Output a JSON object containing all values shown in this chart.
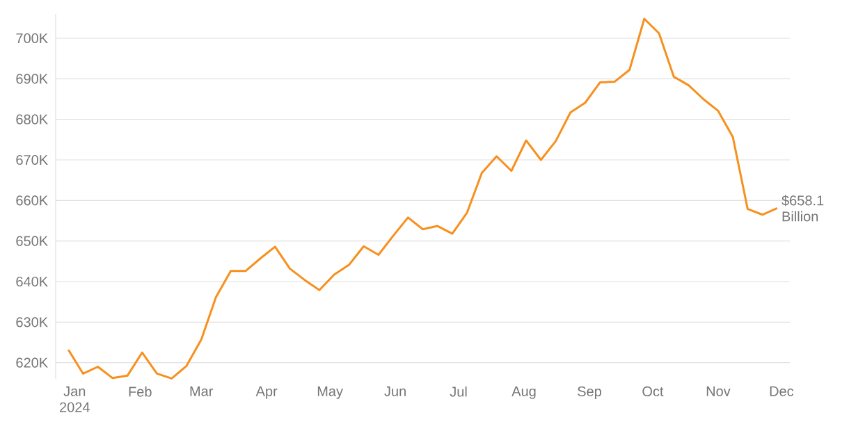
{
  "chart_data": {
    "type": "line",
    "x": [
      "2023-12-29",
      "2024-01-05",
      "2024-01-12",
      "2024-01-19",
      "2024-01-26",
      "2024-02-02",
      "2024-02-09",
      "2024-02-16",
      "2024-02-23",
      "2024-03-01",
      "2024-03-08",
      "2024-03-15",
      "2024-03-22",
      "2024-03-29",
      "2024-04-05",
      "2024-04-12",
      "2024-04-19",
      "2024-04-26",
      "2024-05-03",
      "2024-05-10",
      "2024-05-17",
      "2024-05-24",
      "2024-05-31",
      "2024-06-07",
      "2024-06-14",
      "2024-06-21",
      "2024-06-28",
      "2024-07-05",
      "2024-07-12",
      "2024-07-19",
      "2024-07-26",
      "2024-08-02",
      "2024-08-09",
      "2024-08-16",
      "2024-08-23",
      "2024-08-30",
      "2024-09-06",
      "2024-09-13",
      "2024-09-20",
      "2024-09-27",
      "2024-10-04",
      "2024-10-11",
      "2024-10-18",
      "2024-10-25",
      "2024-11-01",
      "2024-11-08",
      "2024-11-15",
      "2024-11-22",
      "2024-11-29"
    ],
    "series": [
      {
        "color": "#f7901e",
        "values": [
          623.2,
          617.3,
          619.0,
          616.2,
          616.8,
          622.5,
          617.3,
          616.1,
          619.2,
          625.7,
          636.2,
          642.6,
          642.6,
          645.7,
          648.6,
          643.2,
          640.4,
          637.9,
          641.7,
          644.1,
          648.7,
          646.6,
          651.3,
          655.8,
          652.9,
          653.7,
          651.8,
          657.0,
          666.8,
          670.9,
          667.3,
          674.8,
          670.0,
          674.6,
          681.7,
          684.1,
          689.1,
          689.3,
          692.2,
          704.8,
          701.2,
          690.5,
          688.4,
          685.0,
          682.1,
          675.6,
          657.9,
          656.5,
          658.1
        ]
      }
    ],
    "xlim": [
      "2023-12-23",
      "2024-12-05"
    ],
    "xticks": [
      {
        "value": "2024-01-01",
        "label": "Jan 2024"
      },
      {
        "value": "2024-02-01",
        "label": "Feb"
      },
      {
        "value": "2024-03-01",
        "label": "Mar"
      },
      {
        "value": "2024-04-01",
        "label": "Apr"
      },
      {
        "value": "2024-05-01",
        "label": "May"
      },
      {
        "value": "2024-06-01",
        "label": "Jun"
      },
      {
        "value": "2024-07-01",
        "label": "Jul"
      },
      {
        "value": "2024-08-01",
        "label": "Aug"
      },
      {
        "value": "2024-09-01",
        "label": "Sep"
      },
      {
        "value": "2024-10-01",
        "label": "Oct"
      },
      {
        "value": "2024-11-01",
        "label": "Nov"
      },
      {
        "value": "2024-12-01",
        "label": "Dec"
      }
    ],
    "ylim": [
      616,
      706
    ],
    "yticks": [
      {
        "value": 620,
        "label": "620K"
      },
      {
        "value": 630,
        "label": "630K"
      },
      {
        "value": 640,
        "label": "640K"
      },
      {
        "value": 650,
        "label": "650K"
      },
      {
        "value": 660,
        "label": "660K"
      },
      {
        "value": 670,
        "label": "670K"
      },
      {
        "value": 680,
        "label": "680K"
      },
      {
        "value": 690,
        "label": "690K"
      },
      {
        "value": 700,
        "label": "700K"
      }
    ],
    "grid": "y",
    "annotations": [
      {
        "text": "$658.1 Billion",
        "x": "2024-11-29",
        "y": 658.1
      }
    ]
  }
}
